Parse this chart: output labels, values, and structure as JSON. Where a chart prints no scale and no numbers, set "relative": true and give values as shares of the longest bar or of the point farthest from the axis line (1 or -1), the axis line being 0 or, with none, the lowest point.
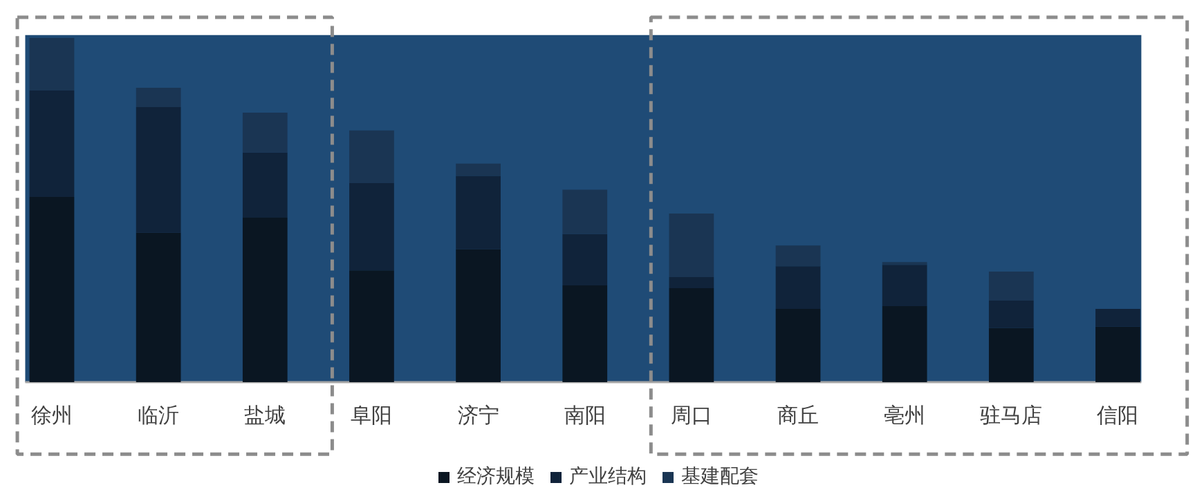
{
  "chart_data": {
    "type": "bar",
    "stacked": true,
    "relative": true,
    "legend": "bottom",
    "categories": [
      "徐州",
      "临沂",
      "盐城",
      "阜阳",
      "济宁",
      "南阳",
      "周口",
      "商丘",
      "亳州",
      "驻马店",
      "信阳"
    ],
    "series": [
      {
        "name": "经济规模",
        "color": "#0a1622",
        "values": [
          0.538,
          0.434,
          0.478,
          0.325,
          0.386,
          0.281,
          0.273,
          0.213,
          0.221,
          0.157,
          0.161
        ]
      },
      {
        "name": "产业结构",
        "color": "#10233a",
        "values": [
          0.309,
          0.365,
          0.189,
          0.253,
          0.213,
          0.149,
          0.032,
          0.124,
          0.12,
          0.08,
          0.052
        ]
      },
      {
        "name": "基建配套",
        "color": "#1a3553",
        "values": [
          0.153,
          0.056,
          0.116,
          0.153,
          0.036,
          0.129,
          0.185,
          0.06,
          0.008,
          0.084,
          0.0
        ]
      }
    ]
  }
}
